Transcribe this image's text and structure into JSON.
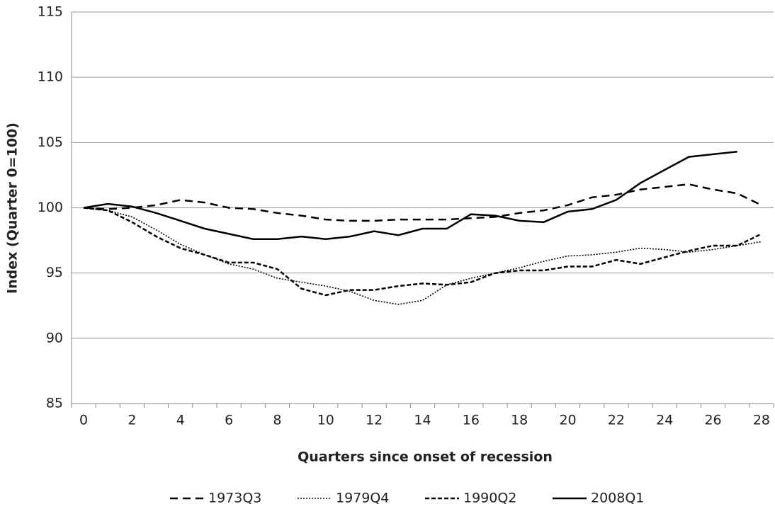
{
  "chart_data": {
    "type": "line",
    "x_label": "Quarters since onset of recession",
    "y_label": "Index (Quarter 0=100)",
    "categories": [
      0,
      null,
      2,
      null,
      4,
      null,
      6,
      null,
      8,
      null,
      10,
      null,
      12,
      null,
      14,
      null,
      16,
      null,
      18,
      null,
      20,
      null,
      22,
      null,
      24,
      null,
      26,
      null,
      28
    ],
    "ylim": [
      85,
      115
    ],
    "yticks": [
      85,
      90,
      95,
      100,
      105,
      110,
      115
    ],
    "grid": true,
    "legend": "bottom",
    "series": [
      {
        "name": "1973Q3",
        "color": "#000000",
        "dash": "long",
        "values": [
          100,
          99.9,
          100.0,
          100.2,
          100.6,
          100.4,
          100.0,
          99.9,
          99.6,
          99.4,
          99.1,
          99.0,
          99.0,
          99.1,
          99.1,
          99.1,
          99.2,
          99.3,
          99.6,
          99.8,
          100.2,
          100.8,
          101.0,
          101.4,
          101.6,
          101.8,
          101.4,
          101.1,
          100.2
        ]
      },
      {
        "name": "1979Q4",
        "color": "#000000",
        "dash": "dotted",
        "values": [
          100,
          99.8,
          99.3,
          98.3,
          97.2,
          96.4,
          95.7,
          95.3,
          94.6,
          94.3,
          94.0,
          93.6,
          92.9,
          92.6,
          92.9,
          94.1,
          94.6,
          95.0,
          95.4,
          95.9,
          96.3,
          96.4,
          96.6,
          96.9,
          96.8,
          96.6,
          96.8,
          97.1,
          97.4
        ]
      },
      {
        "name": "1990Q2",
        "color": "#000000",
        "dash": "short",
        "values": [
          100,
          99.8,
          98.9,
          97.8,
          96.9,
          96.4,
          95.8,
          95.8,
          95.3,
          93.8,
          93.3,
          93.7,
          93.7,
          94.0,
          94.2,
          94.1,
          94.3,
          95.0,
          95.2,
          95.2,
          95.5,
          95.5,
          96.0,
          95.7,
          96.2,
          96.7,
          97.1,
          97.1,
          98.0
        ]
      },
      {
        "name": "2008Q1",
        "color": "#000000",
        "dash": "solid",
        "values": [
          100,
          100.3,
          100.1,
          99.6,
          99.0,
          98.4,
          98.0,
          97.6,
          97.6,
          97.8,
          97.6,
          97.8,
          98.2,
          97.9,
          98.4,
          98.4,
          99.5,
          99.4,
          99.0,
          98.9,
          99.7,
          99.9,
          100.6,
          101.9,
          102.9,
          103.9,
          104.1,
          104.3,
          null
        ]
      }
    ]
  }
}
